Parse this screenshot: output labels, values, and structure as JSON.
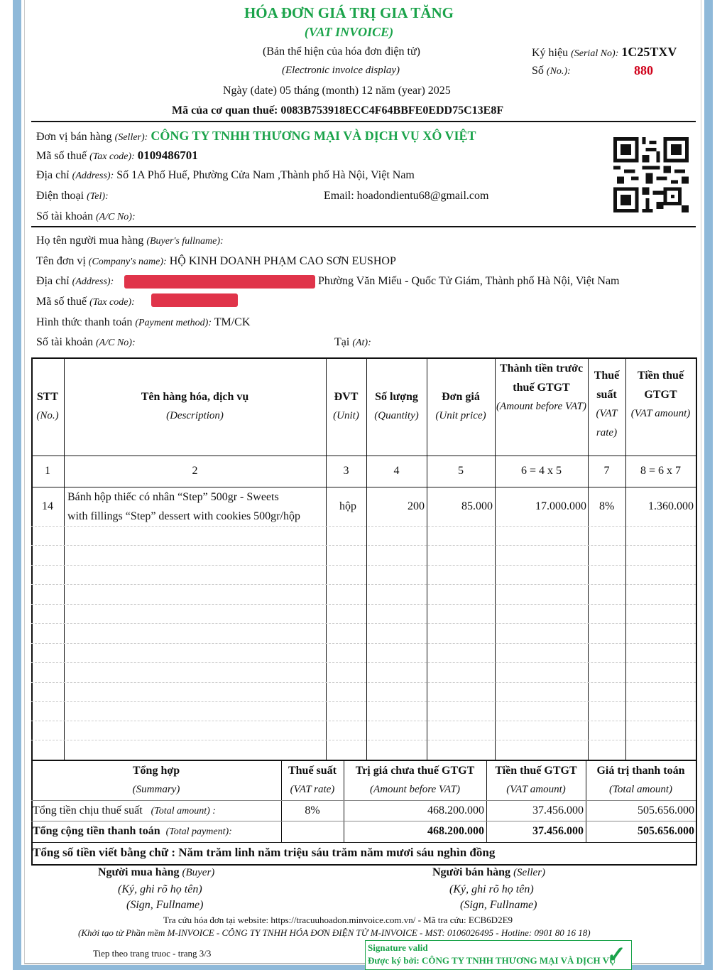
{
  "header": {
    "title": "HÓA ĐƠN GIÁ TRỊ GIA TĂNG",
    "subtitle": "(VAT INVOICE)",
    "display_vi": "(Bản thể hiện của hóa đơn điện tử)",
    "display_en": "(Electronic invoice display)",
    "serial_label": "Ký hiệu",
    "serial_label_en": "(Serial No):",
    "serial": "1C25TXV",
    "no_label": "Số",
    "no_label_en": "(No.):",
    "no": "880",
    "date_line": "Ngày (date) 05 tháng (month) 12 năm (year) 2025",
    "tax_code_line": "Mã của cơ quan thuế: 0083B753918ECC4F64BBFE0EDD75C13E8F"
  },
  "seller": {
    "name_label": "Đơn vị bán hàng",
    "name_label_en": "(Seller):",
    "name": "CÔNG TY TNHH THƯƠNG MẠI VÀ DỊCH VỤ XÔ VIỆT",
    "tax_label": "Mã số thuế",
    "tax_label_en": "(Tax code):",
    "tax": "0109486701",
    "addr_label": "Địa chỉ",
    "addr_label_en": "(Address):",
    "addr": "Số 1A Phố Huế, Phường Cửa Nam ,Thành phố Hà Nội, Việt Nam",
    "tel_label": "Điện thoại",
    "tel_label_en": "(Tel):",
    "email": "Email: hoadondientu68@gmail.com",
    "acc_label": "Số tài khoản",
    "acc_label_en": "(A/C No):"
  },
  "buyer": {
    "fullname_label": "Họ tên người mua hàng",
    "fullname_label_en": "(Buyer's fullname):",
    "company_label": "Tên đơn vị",
    "company_label_en": "(Company's name):",
    "company": "HỘ KINH DOANH PHẠM CAO SƠN EUSHOP",
    "addr_label": "Địa chỉ",
    "addr_label_en": "(Address):",
    "addr": "Phường Văn Miếu - Quốc Tử Giám, Thành phố Hà Nội, Việt Nam",
    "tax_label": "Mã số thuế",
    "tax_label_en": "(Tax code):",
    "pay_label": "Hình thức thanh toán",
    "pay_label_en": "(Payment method):",
    "pay": "TM/CK",
    "acc_label": "Số tài khoản",
    "acc_label_en": "(A/C No):",
    "at_label": "Tại",
    "at_label_en": "(At):"
  },
  "table": {
    "headers": [
      [
        "STT",
        "(No.)"
      ],
      [
        "Tên hàng hóa, dịch vụ",
        "(Description)"
      ],
      [
        "ĐVT",
        "(Unit)"
      ],
      [
        "Số lượng",
        "(Quantity)"
      ],
      [
        "Đơn giá",
        "(Unit price)"
      ],
      [
        "Thành tiền trước thuế GTGT",
        "(Amount before VAT)"
      ],
      [
        "Thuế suất",
        "(VAT rate)"
      ],
      [
        "Tiền thuế GTGT",
        "(VAT amount)"
      ]
    ],
    "numbers": [
      "1",
      "2",
      "3",
      "4",
      "5",
      "6 = 4 x 5",
      "7",
      "8 = 6 x 7"
    ],
    "rows": [
      {
        "no": "14",
        "desc1": "Bánh hộp thiếc có nhân “Step” 500gr - Sweets",
        "desc2": "with fillings “Step” dessert with cookies 500gr/hộp",
        "unit": "hộp",
        "qty": "200",
        "price": "85.000",
        "amount": "17.000.000",
        "rate": "8%",
        "vat": "1.360.000"
      }
    ]
  },
  "summary": {
    "headers": [
      [
        "Tổng hợp",
        "(Summary)"
      ],
      [
        "Thuế suất",
        "(VAT rate)"
      ],
      [
        "Trị giá chưa thuế GTGT",
        "(Amount before VAT)"
      ],
      [
        "Tiền thuế GTGT",
        "(VAT amount)"
      ],
      [
        "Giá trị thanh toán",
        "(Total amount)"
      ]
    ],
    "row1": {
      "label": "Tổng tiền chịu thuế suất",
      "label_en": "(Total amount) :",
      "rate": "8%",
      "before": "468.200.000",
      "vat": "37.456.000",
      "total": "505.656.000"
    },
    "row2": {
      "label": "Tổng cộng tiền thanh toán",
      "label_en": "(Total payment):",
      "before": "468.200.000",
      "vat": "37.456.000",
      "total": "505.656.000"
    },
    "words_label": "Tổng số tiền viết bằng chữ",
    "words": "Năm trăm linh năm triệu sáu trăm năm mươi sáu nghìn đồng"
  },
  "signatures": {
    "buyer": "Người mua hàng",
    "buyer_en": "(Buyer)",
    "seller": "Người bán hàng",
    "seller_en": "(Seller)",
    "sign_vi": "(Ký, ghi rõ họ tên)",
    "sign_en": "(Sign, Fullname)"
  },
  "footer": {
    "lookup": "Tra cứu hóa đơn tại website: https://tracuuhoadon.minvoice.com.vn/ - Mã tra cứu: ECB6D2E9",
    "software": "(Khởi tạo từ Phần mềm M-INVOICE - CÔNG TY TNHH HÓA ĐƠN ĐIỆN TỬ M-INVOICE - MST: 0106026495 - Hotline: 0901 80 16 18)",
    "page": "Tiep theo trang truoc - trang 3/3",
    "sig_valid": "Signature valid",
    "signed_by": "Được ký bởi: CÔNG TY TNHH THƯƠNG MẠI VÀ DỊCH VỤ"
  },
  "colors": {
    "green": "#1aa34a",
    "red": "#d0021b",
    "border": "#8fb9d9"
  }
}
